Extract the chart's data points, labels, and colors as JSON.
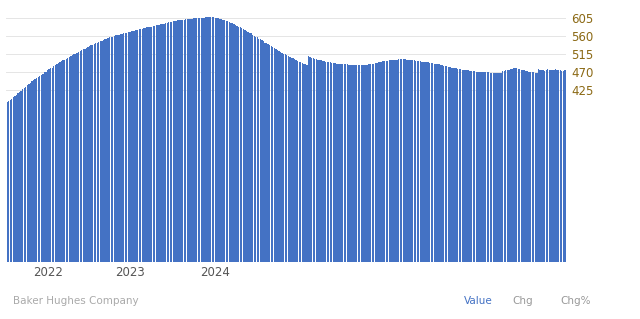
{
  "bar_color": "#4472C4",
  "background_color": "#ffffff",
  "ylabel_color": "#8B6914",
  "yticks": [
    425,
    470,
    515,
    560,
    605
  ],
  "footer_left": "Baker Hughes Company",
  "footer_value": "Value",
  "footer_chg": "Chg",
  "footer_chgpct": "Chg%",
  "footer_value_color": "#4472C4",
  "footer_text_color": "#999999",
  "grid_color": "#e5e5e5",
  "values": [
    395,
    398,
    401,
    404,
    407,
    411,
    414,
    418,
    421,
    424,
    428,
    431,
    434,
    437,
    440,
    443,
    447,
    450,
    453,
    456,
    458,
    460,
    463,
    466,
    469,
    471,
    474,
    477,
    479,
    481,
    484,
    487,
    490,
    492,
    494,
    497,
    499,
    501,
    503,
    505,
    507,
    510,
    512,
    514,
    516,
    518,
    520,
    522,
    524,
    526,
    528,
    530,
    532,
    534,
    536,
    538,
    540,
    541,
    543,
    545,
    547,
    548,
    550,
    551,
    553,
    554,
    556,
    557,
    558,
    560,
    561,
    562,
    563,
    564,
    565,
    566,
    567,
    568,
    569,
    570,
    571,
    572,
    573,
    574,
    575,
    576,
    577,
    578,
    579,
    580,
    581,
    582,
    583,
    583,
    584,
    585,
    586,
    586,
    587,
    588,
    589,
    590,
    591,
    592,
    593,
    594,
    595,
    596,
    597,
    597,
    598,
    599,
    599,
    600,
    600,
    601,
    601,
    601,
    602,
    602,
    603,
    603,
    603,
    604,
    604,
    605,
    605,
    605,
    606,
    607,
    607,
    607,
    606,
    606,
    605,
    604,
    603,
    602,
    601,
    600,
    598,
    597,
    596,
    594,
    592,
    591,
    589,
    587,
    585,
    583,
    581,
    579,
    577,
    575,
    572,
    570,
    568,
    566,
    563,
    560,
    558,
    556,
    553,
    551,
    549,
    546,
    543,
    541,
    539,
    536,
    534,
    532,
    529,
    527,
    524,
    522,
    520,
    518,
    516,
    514,
    512,
    510,
    508,
    506,
    504,
    502,
    500,
    498,
    496,
    494,
    492,
    491,
    489,
    487,
    510,
    508,
    506,
    505,
    503,
    502,
    501,
    500,
    499,
    498,
    497,
    496,
    495,
    494,
    494,
    493,
    492,
    492,
    491,
    491,
    490,
    490,
    490,
    489,
    489,
    489,
    488,
    488,
    488,
    488,
    487,
    487,
    487,
    487,
    487,
    488,
    488,
    488,
    488,
    489,
    489,
    490,
    491,
    492,
    493,
    494,
    495,
    496,
    497,
    497,
    498,
    498,
    499,
    499,
    500,
    500,
    501,
    501,
    502,
    502,
    502,
    502,
    502,
    501,
    501,
    501,
    500,
    500,
    499,
    498,
    498,
    497,
    497,
    496,
    495,
    495,
    494,
    494,
    493,
    492,
    492,
    491,
    490,
    490,
    489,
    488,
    487,
    486,
    485,
    484,
    483,
    482,
    481,
    481,
    480,
    479,
    478,
    478,
    477,
    476,
    476,
    475,
    475,
    474,
    473,
    473,
    472,
    472,
    471,
    471,
    471,
    470,
    470,
    470,
    469,
    469,
    469,
    468,
    468,
    468,
    467,
    467,
    467,
    467,
    468,
    472,
    473,
    474,
    475,
    476,
    477,
    478,
    479,
    480,
    479,
    478,
    477,
    476,
    475,
    474,
    473,
    472,
    471,
    471,
    470,
    469,
    468,
    467,
    477,
    476,
    475,
    474,
    473,
    475,
    477,
    476,
    475,
    474,
    476,
    477,
    476,
    475,
    474,
    473,
    472,
    474,
    473,
    474,
    476,
    477,
    476,
    475,
    474,
    473,
    472,
    473
  ],
  "x_tick_positions": [
    52,
    104,
    156,
    208,
    260,
    312
  ],
  "x_tick_labels": [
    "",
    "2022",
    "",
    "2023",
    "",
    "2024"
  ],
  "ylim_bottom": 0,
  "ylim_top": 625,
  "xlim_left": -0.5,
  "xlim_right": 360
}
